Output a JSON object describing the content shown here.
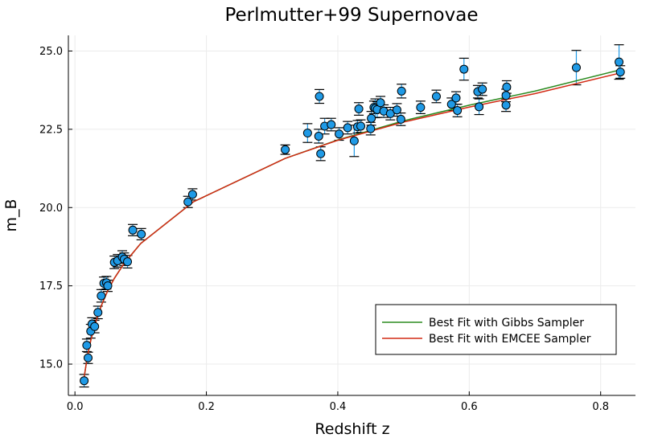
{
  "chart_data": {
    "type": "scatter",
    "title": "Perlmutter+99 Supernovae",
    "xlabel": "Redshift z",
    "ylabel": "m_B",
    "xlim": [
      -0.01,
      0.853
    ],
    "ylim": [
      14.0,
      25.5
    ],
    "xticks": [
      0.0,
      0.2,
      0.4,
      0.6,
      0.8
    ],
    "xtick_labels": [
      "0.0",
      "0.2",
      "0.4",
      "0.6",
      "0.8"
    ],
    "yticks": [
      15.0,
      17.5,
      20.0,
      22.5,
      25.0
    ],
    "ytick_labels": [
      "15.0",
      "17.5",
      "20.0",
      "22.5",
      "25.0"
    ],
    "grid": true,
    "legend_position": "bottom-right",
    "colors": {
      "points": "#1f9ae6",
      "gibbs": "#2a8a1f",
      "emcee": "#d22a14"
    },
    "points": {
      "x": [
        0.014,
        0.018,
        0.02,
        0.024,
        0.026,
        0.03,
        0.035,
        0.04,
        0.044,
        0.048,
        0.05,
        0.06,
        0.065,
        0.072,
        0.075,
        0.08,
        0.088,
        0.101,
        0.172,
        0.179,
        0.32,
        0.354,
        0.371,
        0.372,
        0.374,
        0.38,
        0.39,
        0.402,
        0.415,
        0.425,
        0.43,
        0.432,
        0.435,
        0.45,
        0.451,
        0.455,
        0.457,
        0.46,
        0.465,
        0.47,
        0.48,
        0.49,
        0.496,
        0.497,
        0.526,
        0.55,
        0.573,
        0.58,
        0.582,
        0.592,
        0.613,
        0.615,
        0.62,
        0.656,
        0.656,
        0.657,
        0.763,
        0.828,
        0.83
      ],
      "y": [
        14.47,
        15.6,
        15.2,
        16.05,
        16.28,
        16.2,
        16.65,
        17.18,
        17.58,
        17.6,
        17.5,
        18.25,
        18.3,
        18.42,
        18.35,
        18.27,
        19.28,
        19.15,
        20.18,
        20.42,
        21.85,
        22.38,
        22.28,
        23.55,
        21.72,
        22.6,
        22.65,
        22.35,
        22.55,
        22.13,
        22.58,
        23.15,
        22.6,
        22.52,
        22.85,
        23.2,
        23.17,
        23.13,
        23.35,
        23.08,
        23.0,
        23.12,
        22.82,
        23.72,
        23.2,
        23.55,
        23.3,
        23.5,
        23.1,
        24.42,
        23.7,
        23.22,
        23.78,
        23.27,
        23.58,
        23.85,
        24.47,
        24.65,
        24.33
      ],
      "yerr": [
        0.2,
        0.2,
        0.18,
        0.22,
        0.2,
        0.2,
        0.2,
        0.2,
        0.2,
        0.2,
        0.18,
        0.2,
        0.2,
        0.2,
        0.2,
        0.2,
        0.18,
        0.18,
        0.18,
        0.18,
        0.15,
        0.3,
        0.22,
        0.22,
        0.22,
        0.25,
        0.2,
        0.2,
        0.2,
        0.5,
        0.2,
        0.2,
        0.2,
        0.2,
        0.22,
        0.2,
        0.3,
        0.25,
        0.2,
        0.2,
        0.2,
        0.2,
        0.2,
        0.22,
        0.2,
        0.2,
        0.2,
        0.2,
        0.2,
        0.35,
        0.2,
        0.25,
        0.2,
        0.2,
        0.2,
        0.2,
        0.55,
        0.55,
        0.2
      ]
    },
    "series": [
      {
        "name": "Best Fit with Gibbs Sampler",
        "x": [
          0.014,
          0.018,
          0.02,
          0.024,
          0.03,
          0.04,
          0.05,
          0.06,
          0.075,
          0.1,
          0.18,
          0.32,
          0.4,
          0.5,
          0.6,
          0.7,
          0.83
        ],
        "y": [
          14.58,
          15.12,
          15.35,
          15.75,
          16.24,
          16.86,
          17.35,
          17.74,
          18.22,
          18.85,
          20.18,
          21.57,
          22.16,
          22.77,
          23.27,
          23.72,
          24.4
        ]
      },
      {
        "name": "Best Fit with EMCEE Sampler",
        "x": [
          0.014,
          0.018,
          0.02,
          0.024,
          0.03,
          0.04,
          0.05,
          0.06,
          0.075,
          0.1,
          0.18,
          0.32,
          0.4,
          0.5,
          0.6,
          0.7,
          0.83
        ],
        "y": [
          14.58,
          15.12,
          15.35,
          15.75,
          16.24,
          16.86,
          17.35,
          17.74,
          18.22,
          18.85,
          20.18,
          21.57,
          22.15,
          22.73,
          23.21,
          23.64,
          24.3
        ]
      }
    ]
  }
}
